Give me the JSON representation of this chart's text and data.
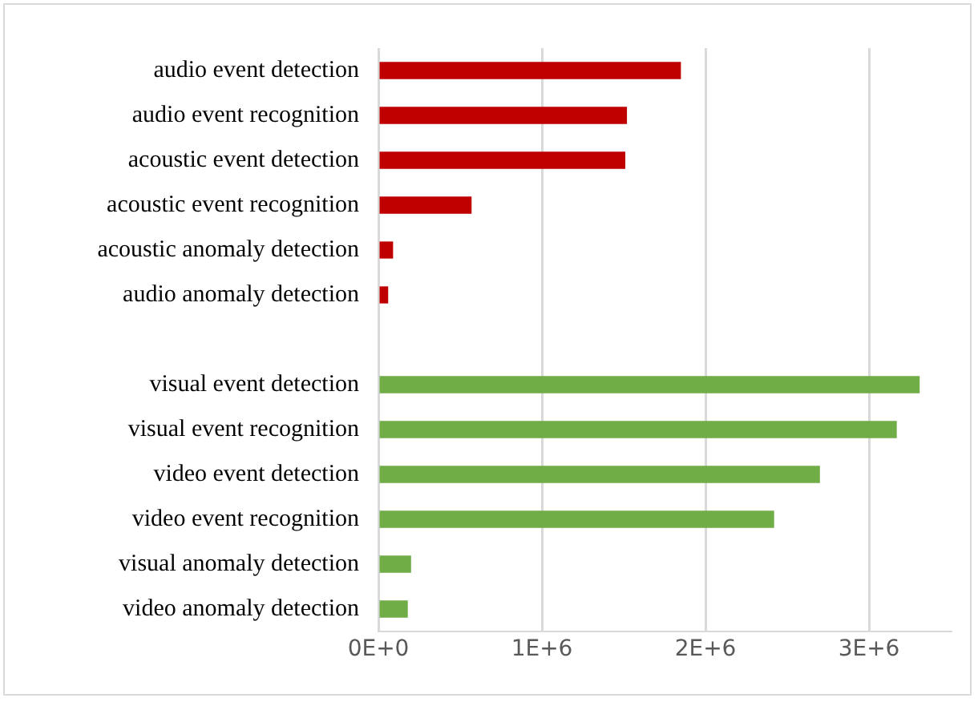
{
  "chart_data": {
    "type": "bar",
    "orientation": "horizontal",
    "categories": [
      "audio event detection",
      "audio event recognition",
      "acoustic event detection",
      "acoustic event recognition",
      "acoustic anomaly detection",
      "audio anomaly detection",
      null,
      "visual event detection",
      "visual event recognition",
      "video event detection",
      "video event recognition",
      "visual anomaly detection",
      "video anomaly detection"
    ],
    "values": [
      1850000,
      1520000,
      1510000,
      570000,
      90000,
      60000,
      null,
      3310000,
      3170000,
      2700000,
      2420000,
      200000,
      180000
    ],
    "colors": [
      "#c00000",
      "#c00000",
      "#c00000",
      "#c00000",
      "#c00000",
      "#c00000",
      "#c00000",
      "#70ad47",
      "#70ad47",
      "#70ad47",
      "#70ad47",
      "#70ad47",
      "#70ad47"
    ],
    "xticks": [
      {
        "value": 0,
        "label": "0E+0"
      },
      {
        "value": 1000000,
        "label": "1E+6"
      },
      {
        "value": 2000000,
        "label": "2E+6"
      },
      {
        "value": 3000000,
        "label": "3E+6"
      }
    ],
    "xlim": [
      0,
      3500000
    ],
    "grid": "x",
    "legend": false
  }
}
